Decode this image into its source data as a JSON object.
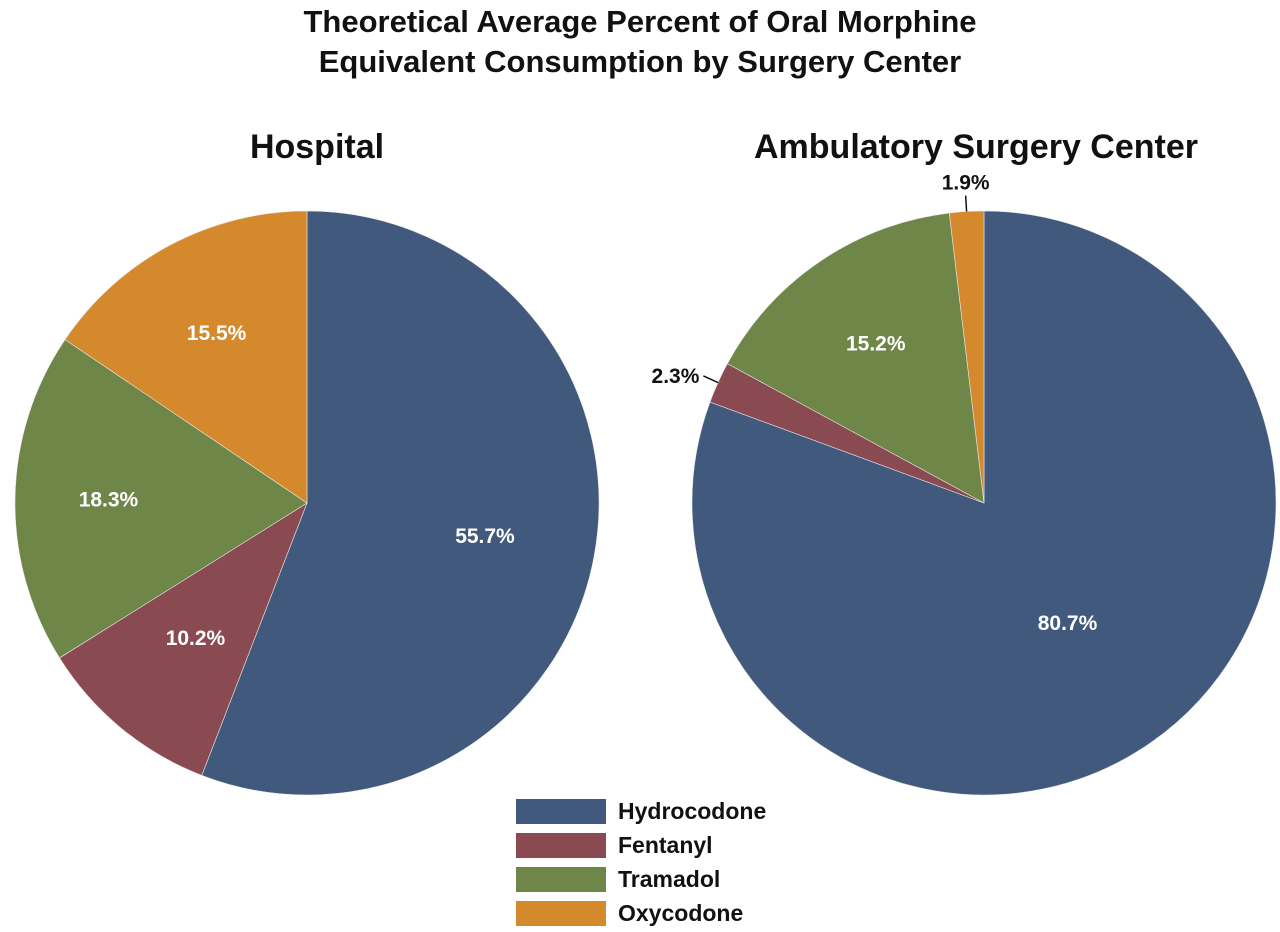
{
  "title": {
    "line1": "Theoretical Average Percent of Oral Morphine",
    "line2": "Equivalent Consumption by Surgery Center"
  },
  "chart_data": [
    {
      "type": "pie",
      "title": "Hospital",
      "labels": [
        "Hydrocodone",
        "Fentanyl",
        "Tramadol",
        "Oxycodone"
      ],
      "values": [
        55.7,
        10.2,
        18.3,
        15.5
      ],
      "value_labels": [
        "55.7%",
        "10.2%",
        "18.3%",
        "15.5%"
      ],
      "colors": [
        "#41597d",
        "#8a4a52",
        "#6e8647",
        "#d4892c"
      ],
      "start": "12 o'clock, clockwise"
    },
    {
      "type": "pie",
      "title": "Ambulatory Surgery Center",
      "labels": [
        "Hydrocodone",
        "Fentanyl",
        "Tramadol",
        "Oxycodone"
      ],
      "values": [
        80.7,
        2.3,
        15.2,
        1.9
      ],
      "value_labels": [
        "80.7%",
        "2.3%",
        "15.2%",
        "1.9%"
      ],
      "colors": [
        "#41597d",
        "#8a4a52",
        "#6e8647",
        "#d4892c"
      ],
      "start": "12 o'clock, clockwise"
    }
  ],
  "legend": {
    "placement": "bottom-center",
    "items": [
      {
        "label": "Hydrocodone",
        "color": "#41597d"
      },
      {
        "label": "Fentanyl",
        "color": "#8a4a52"
      },
      {
        "label": "Tramadol",
        "color": "#6e8647"
      },
      {
        "label": "Oxycodone",
        "color": "#d4892c"
      }
    ]
  }
}
